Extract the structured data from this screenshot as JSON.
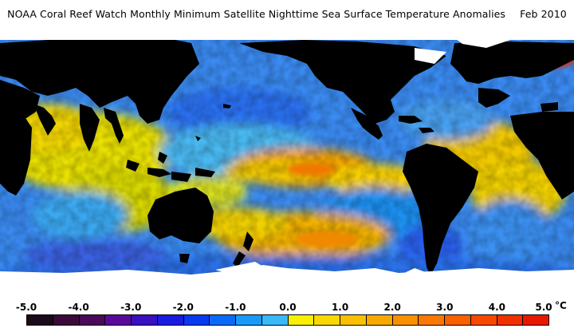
{
  "header": {
    "title": "NOAA Coral Reef Watch Monthly Minimum Satellite Nighttime Sea Surface Temperature Anomalies",
    "date": "Feb 2010"
  },
  "legend": {
    "ticks": [
      "-5.0",
      "-4.0",
      "-3.0",
      "-2.0",
      "-1.0",
      "0.0",
      "1.0",
      "2.0",
      "3.0",
      "4.0",
      "5.0"
    ],
    "unit": "°C",
    "colors": [
      "#1a0a1a",
      "#3a0a3a",
      "#4a0a5a",
      "#5a0a9a",
      "#3a10c0",
      "#1a1ae0",
      "#0a3af0",
      "#0a6af8",
      "#1a9af8",
      "#3ab8f8",
      "#f8f000",
      "#f8d800",
      "#f8c000",
      "#f8a800",
      "#f89000",
      "#f87800",
      "#f86000",
      "#f84800",
      "#f03000",
      "#e81800"
    ]
  },
  "map": {
    "land_color": "#000000",
    "ice_color": "#ffffff",
    "ocean_base_color": "#3a8af0"
  }
}
